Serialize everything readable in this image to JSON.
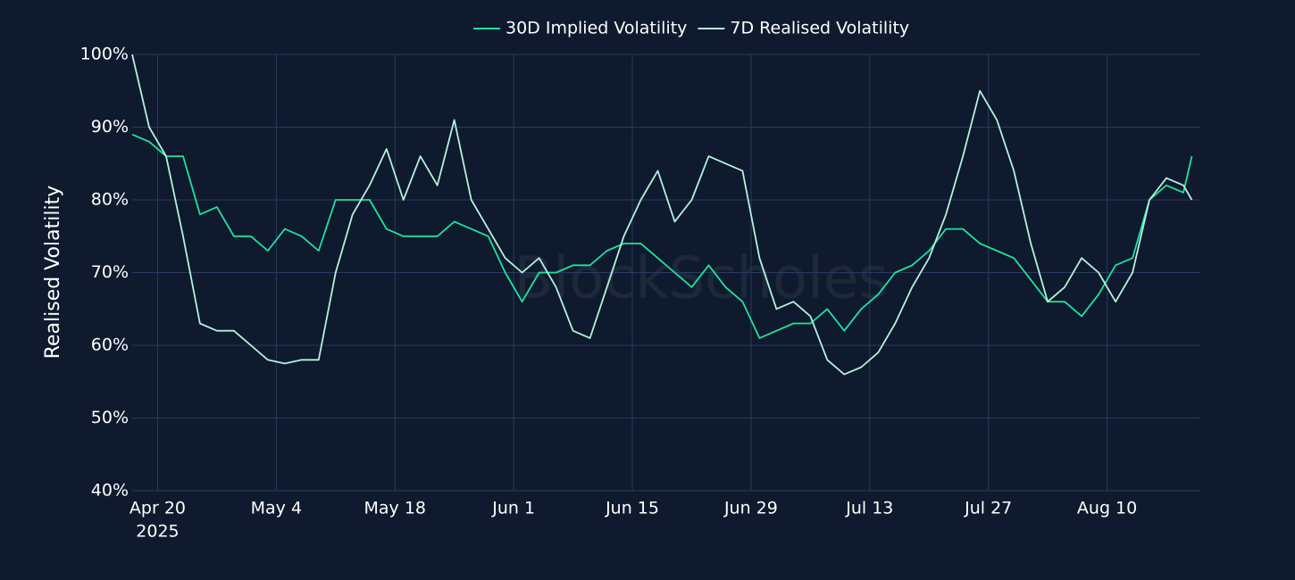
{
  "chart_data": {
    "type": "line",
    "legend_position": "top",
    "y_label": "Realised Volatility",
    "watermark": "BlockScholes",
    "year_label": "2025",
    "x": [
      "2025-04-17",
      "2025-04-19",
      "2025-04-21",
      "2025-04-23",
      "2025-04-25",
      "2025-04-27",
      "2025-04-29",
      "2025-05-01",
      "2025-05-03",
      "2025-05-05",
      "2025-05-07",
      "2025-05-09",
      "2025-05-11",
      "2025-05-13",
      "2025-05-15",
      "2025-05-17",
      "2025-05-19",
      "2025-05-21",
      "2025-05-23",
      "2025-05-25",
      "2025-05-27",
      "2025-05-29",
      "2025-05-31",
      "2025-06-02",
      "2025-06-04",
      "2025-06-06",
      "2025-06-08",
      "2025-06-10",
      "2025-06-12",
      "2025-06-14",
      "2025-06-16",
      "2025-06-18",
      "2025-06-20",
      "2025-06-22",
      "2025-06-24",
      "2025-06-26",
      "2025-06-28",
      "2025-06-30",
      "2025-07-02",
      "2025-07-04",
      "2025-07-06",
      "2025-07-08",
      "2025-07-10",
      "2025-07-12",
      "2025-07-14",
      "2025-07-16",
      "2025-07-18",
      "2025-07-20",
      "2025-07-22",
      "2025-07-24",
      "2025-07-26",
      "2025-07-28",
      "2025-07-30",
      "2025-08-01",
      "2025-08-03",
      "2025-08-05",
      "2025-08-07",
      "2025-08-09",
      "2025-08-11",
      "2025-08-13",
      "2025-08-15",
      "2025-08-17",
      "2025-08-19",
      "2025-08-20"
    ],
    "series": [
      {
        "name": "30D Implied Volatility",
        "color": "#1fe39b",
        "values": [
          89,
          88,
          86,
          86,
          78,
          79,
          75,
          75,
          73,
          76,
          75,
          73,
          80,
          80,
          80,
          76,
          75,
          75,
          75,
          77,
          76,
          75,
          70,
          66,
          70,
          70,
          71,
          71,
          73,
          74,
          74,
          72,
          70,
          68,
          71,
          68,
          66,
          61,
          62,
          63,
          63,
          65,
          62,
          65,
          67,
          70,
          71,
          73,
          76,
          76,
          74,
          73,
          72,
          69,
          66,
          66,
          64,
          67,
          71,
          72,
          80,
          82,
          81,
          86
        ]
      },
      {
        "name": "7D Realised Volatility",
        "color": "#b4f2dc",
        "values": [
          100,
          90,
          86,
          75,
          63,
          62,
          62,
          60,
          58,
          57.5,
          58,
          58,
          70,
          78,
          82,
          87,
          80,
          86,
          82,
          91,
          80,
          76,
          72,
          70,
          72,
          68,
          62,
          61,
          68,
          75,
          80,
          84,
          77,
          80,
          86,
          85,
          84,
          72,
          65,
          66,
          64,
          58,
          56,
          57,
          59,
          63,
          68,
          72,
          78,
          86,
          95,
          91,
          84,
          74,
          66,
          68,
          72,
          70,
          66,
          70,
          80,
          83,
          82,
          80
        ]
      }
    ],
    "xlim": [
      "2025-04-17",
      "2025-08-21"
    ],
    "xticks": [
      {
        "value": "2025-04-20",
        "label": "Apr 20"
      },
      {
        "value": "2025-05-04",
        "label": "May 4"
      },
      {
        "value": "2025-05-18",
        "label": "May 18"
      },
      {
        "value": "2025-06-01",
        "label": "Jun 1"
      },
      {
        "value": "2025-06-15",
        "label": "Jun 15"
      },
      {
        "value": "2025-06-29",
        "label": "Jun 29"
      },
      {
        "value": "2025-07-13",
        "label": "Jul 13"
      },
      {
        "value": "2025-07-27",
        "label": "Jul 27"
      },
      {
        "value": "2025-08-10",
        "label": "Aug 10"
      }
    ],
    "ylim": [
      40,
      100
    ],
    "yticks": [
      {
        "value": 40,
        "label": "40%"
      },
      {
        "value": 50,
        "label": "50%"
      },
      {
        "value": 60,
        "label": "60%"
      },
      {
        "value": 70,
        "label": "70%"
      },
      {
        "value": 80,
        "label": "80%"
      },
      {
        "value": 90,
        "label": "90%"
      },
      {
        "value": 100,
        "label": "100%"
      }
    ],
    "grid": true
  }
}
